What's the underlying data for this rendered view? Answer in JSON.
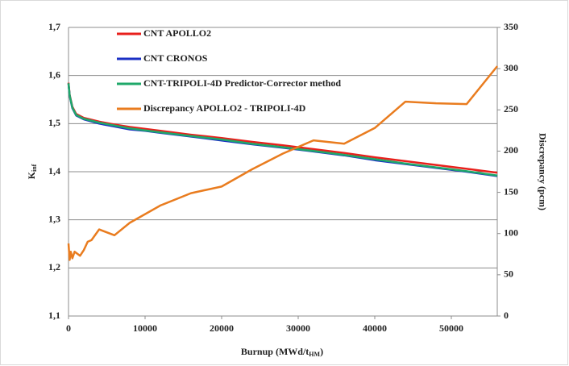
{
  "chart_data": {
    "type": "line",
    "xlabel": [
      "Burnup (MWd/t",
      "HM",
      ")"
    ],
    "ylabel": [
      "K",
      "inf"
    ],
    "y2label": "Discrepancy  (pcm)",
    "xlim": [
      0,
      56000
    ],
    "xticks": [
      0,
      10000,
      20000,
      30000,
      40000,
      50000
    ],
    "ylim": [
      1.1,
      1.7
    ],
    "yticks": [
      {
        "value": 1.1,
        "label": "1,1"
      },
      {
        "value": 1.2,
        "label": "1,2"
      },
      {
        "value": 1.3,
        "label": "1,3"
      },
      {
        "value": 1.4,
        "label": "1,4"
      },
      {
        "value": 1.5,
        "label": "1,5"
      },
      {
        "value": 1.6,
        "label": "1,6"
      },
      {
        "value": 1.7,
        "label": "1,7"
      }
    ],
    "y2lim": [
      0,
      350
    ],
    "y2ticks": [
      0,
      50,
      100,
      150,
      200,
      250,
      300,
      350
    ],
    "grid": true,
    "legend": "upper-left",
    "series": [
      {
        "name": "CNT APOLLO2",
        "color": "#e8201c",
        "x": [
          0,
          150,
          500,
          1000,
          2000,
          4000,
          6000,
          8000,
          10000,
          12000,
          16000,
          20000,
          24000,
          28000,
          32000,
          36000,
          40000,
          44000,
          48000,
          52000,
          56000
        ],
        "values": [
          1.585,
          1.56,
          1.535,
          1.52,
          1.512,
          1.504,
          1.498,
          1.493,
          1.489,
          1.485,
          1.477,
          1.47,
          1.462,
          1.455,
          1.447,
          1.439,
          1.43,
          1.422,
          1.414,
          1.406,
          1.398
        ]
      },
      {
        "name": "CNT CRONOS",
        "color": "#1a2fc4",
        "x": [
          0,
          150,
          500,
          1000,
          2000,
          4000,
          6000,
          8000,
          10000,
          12000,
          16000,
          20000,
          24000,
          28000,
          32000,
          36000,
          40000,
          44000,
          48000,
          52000,
          56000
        ],
        "values": [
          1.583,
          1.558,
          1.532,
          1.517,
          1.509,
          1.5,
          1.494,
          1.488,
          1.485,
          1.481,
          1.473,
          1.465,
          1.457,
          1.45,
          1.442,
          1.434,
          1.424,
          1.416,
          1.408,
          1.4,
          1.391
        ]
      },
      {
        "name": "CNT-TRIPOLI-4D Predictor-Corrector method",
        "color": "#1fa86a",
        "x": [
          0,
          150,
          500,
          1000,
          2000,
          4000,
          6000,
          8000,
          10000,
          12000,
          16000,
          20000,
          24000,
          28000,
          32000,
          36000,
          40000,
          44000,
          48000,
          52000,
          56000
        ],
        "values": [
          1.584,
          1.559,
          1.533,
          1.518,
          1.51,
          1.502,
          1.496,
          1.49,
          1.486,
          1.482,
          1.474,
          1.467,
          1.458,
          1.451,
          1.443,
          1.435,
          1.426,
          1.417,
          1.409,
          1.401,
          1.392
        ]
      },
      {
        "name": "Discrepancy APOLLO2 - TRIPOLI-4D",
        "color": "#e97c1f",
        "axis": "y2",
        "x": [
          0,
          150,
          300,
          500,
          800,
          1500,
          2000,
          2500,
          3000,
          4000,
          6000,
          8000,
          12000,
          16000,
          20000,
          24000,
          28000,
          32000,
          36000,
          40000,
          44000,
          48000,
          52000,
          56000
        ],
        "values": [
          88,
          68,
          78,
          70,
          78,
          73,
          80,
          90,
          92,
          105,
          98,
          113,
          134,
          149,
          157,
          178,
          197,
          213,
          209,
          228,
          260,
          258,
          257,
          303
        ]
      }
    ]
  }
}
